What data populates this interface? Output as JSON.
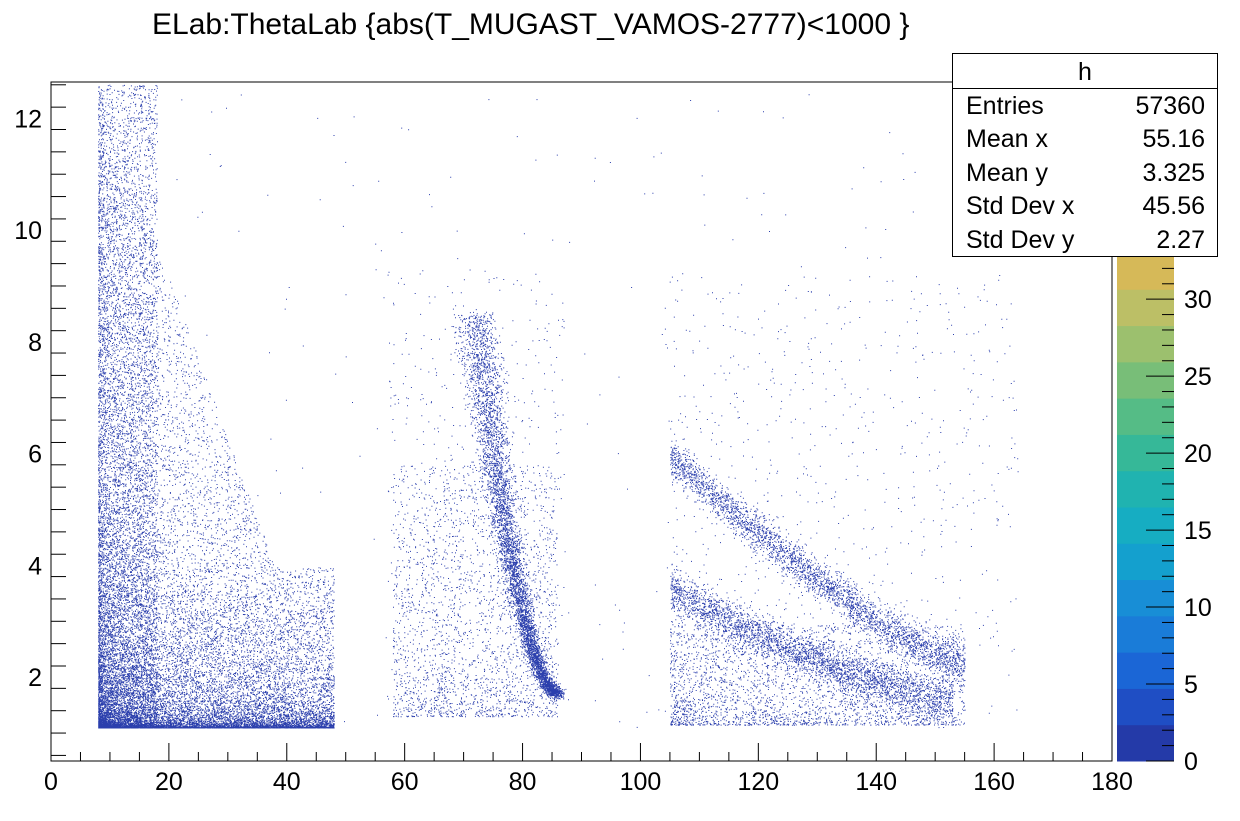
{
  "title": "ELab:ThetaLab {abs(T_MUGAST_VAMOS-2777)<1000 }",
  "stats": {
    "name": "h",
    "rows": [
      {
        "label": "Entries",
        "value": "57360"
      },
      {
        "label": "Mean x",
        "value": "55.16"
      },
      {
        "label": "Mean y",
        "value": "3.325"
      },
      {
        "label": "Std Dev x",
        "value": "45.56"
      },
      {
        "label": "Std Dev y",
        "value": "2.27"
      }
    ]
  },
  "chart_data": {
    "type": "heatmap",
    "title": "ELab:ThetaLab {abs(T_MUGAST_VAMOS-2777)<1000 }",
    "xlabel": "",
    "ylabel": "",
    "xlim": [
      0,
      180
    ],
    "ylim": [
      0.5,
      12.65
    ],
    "x_ticks": [
      0,
      20,
      40,
      60,
      80,
      100,
      120,
      140,
      160,
      180
    ],
    "y_ticks": [
      2,
      4,
      6,
      8,
      10,
      12
    ],
    "colorbar": {
      "range": [
        0,
        33
      ],
      "ticks": [
        0,
        5,
        10,
        15,
        20,
        25,
        30
      ],
      "palette": [
        "#243aa8",
        "#1f4ec4",
        "#1b66d6",
        "#1a7cd8",
        "#188ed6",
        "#14a0ce",
        "#16adc2",
        "#20b3b0",
        "#36b898",
        "#55bc86",
        "#78be78",
        "#9cc06e",
        "#bcbf66",
        "#d6b958"
      ]
    },
    "marker_color": "#2b3fad",
    "regions": [
      {
        "name": "band-forward",
        "x_range": [
          8,
          48
        ],
        "y_range": [
          1.1,
          12.6
        ],
        "density": "high near x=10-20 and y<3"
      },
      {
        "name": "band-kinematic-line",
        "x_range": [
          57,
          87
        ],
        "y_range": [
          1.3,
          9.3
        ],
        "shape": "curve rising to the left from (86,1.7) to (72,8.5)"
      },
      {
        "name": "band-backward",
        "x_range": [
          104,
          156
        ],
        "y_range": [
          1.1,
          6.2
        ],
        "shape": "two decreasing curves from x=105 to x=155"
      }
    ]
  }
}
